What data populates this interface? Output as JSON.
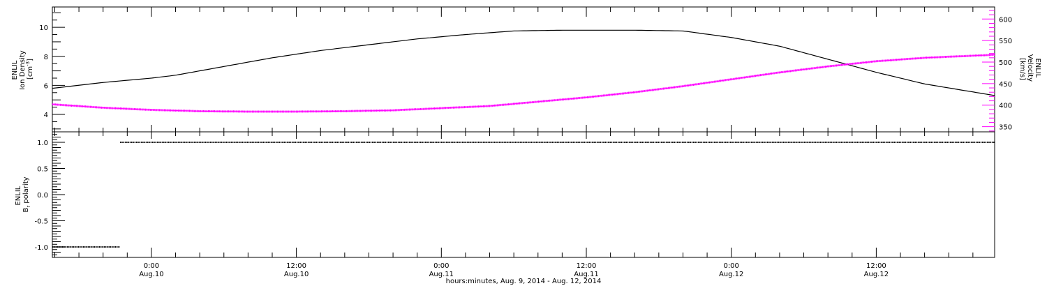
{
  "colors": {
    "density": "#000000",
    "velocity": "#ff00ff",
    "polarity": "#000000",
    "frame": "#000000"
  },
  "x_axis": {
    "title": "hours:minutes, Aug.  9, 2014 - Aug. 12, 2014",
    "tick_labels": [
      {
        "time": "0:00",
        "date": "Aug.10"
      },
      {
        "time": "12:00",
        "date": "Aug.10"
      },
      {
        "time": "0:00",
        "date": "Aug.11"
      },
      {
        "time": "12:00",
        "date": "Aug.11"
      },
      {
        "time": "0:00",
        "date": "Aug.12"
      },
      {
        "time": "12:00",
        "date": "Aug.12"
      }
    ]
  },
  "panels": {
    "top": {
      "left_label": {
        "line1": "ENLIL",
        "line2": "Ion Density",
        "line3": "[cm",
        "line3_sup": "-3",
        "line3_end": "]"
      },
      "right_label": {
        "line1": "ENLIL",
        "line2": "Velocity",
        "line3": "[km/s]"
      },
      "left_ticks": [
        "4",
        "6",
        "8",
        "10"
      ],
      "right_ticks": [
        "350",
        "400",
        "450",
        "500",
        "550",
        "600"
      ]
    },
    "bottom": {
      "left_label": {
        "line1": "ENLIL",
        "line2": "B",
        "line2_sub": "r",
        "line2_end": " polarity"
      },
      "left_ticks": [
        "-1.0",
        "-0.5",
        "0.0",
        "0.5",
        "1.0"
      ]
    }
  },
  "chart_data": [
    {
      "type": "line",
      "panel": "top",
      "x_unit": "hours since 2014-08-10 00:00 UT",
      "xlim": [
        -8.2,
        69.8
      ],
      "ylabel": "ENLIL Ion Density [cm-3]",
      "ylim": [
        2.8,
        11.4
      ],
      "y2label": "ENLIL Velocity [km/s]",
      "y2lim": [
        338,
        628
      ],
      "series": [
        {
          "name": "Ion Density",
          "axis": "left",
          "x": [
            -8.2,
            -4,
            0,
            2,
            6,
            10,
            14,
            18,
            22,
            26,
            30,
            34,
            36,
            40,
            44,
            48,
            52,
            56,
            60,
            64,
            69.8
          ],
          "y": [
            5.8,
            6.2,
            6.5,
            6.7,
            7.3,
            7.9,
            8.4,
            8.8,
            9.2,
            9.5,
            9.75,
            9.8,
            9.8,
            9.8,
            9.75,
            9.3,
            8.7,
            7.8,
            6.9,
            6.1,
            5.3
          ]
        },
        {
          "name": "Velocity",
          "axis": "right",
          "x": [
            -8.2,
            -4,
            0,
            4,
            8,
            12,
            16,
            20,
            24,
            28,
            32,
            36,
            40,
            44,
            48,
            52,
            56,
            60,
            64,
            69.8
          ],
          "y": [
            402,
            394,
            389,
            386,
            385,
            385,
            386,
            388,
            393,
            398,
            408,
            418,
            430,
            444,
            460,
            476,
            490,
            502,
            510,
            517
          ]
        }
      ]
    },
    {
      "type": "scatter",
      "panel": "bottom",
      "x_unit": "hours since 2014-08-10 00:00 UT",
      "xlim": [
        -8.2,
        69.8
      ],
      "ylabel": "ENLIL Br polarity",
      "ylim": [
        -1.2,
        1.2
      ],
      "series": [
        {
          "name": "Br polarity",
          "segments": [
            {
              "x_start": -8.2,
              "x_end": -2.6,
              "value": -1.0
            },
            {
              "x_start": -2.6,
              "x_end": 69.8,
              "value": 1.0
            }
          ]
        }
      ]
    }
  ]
}
